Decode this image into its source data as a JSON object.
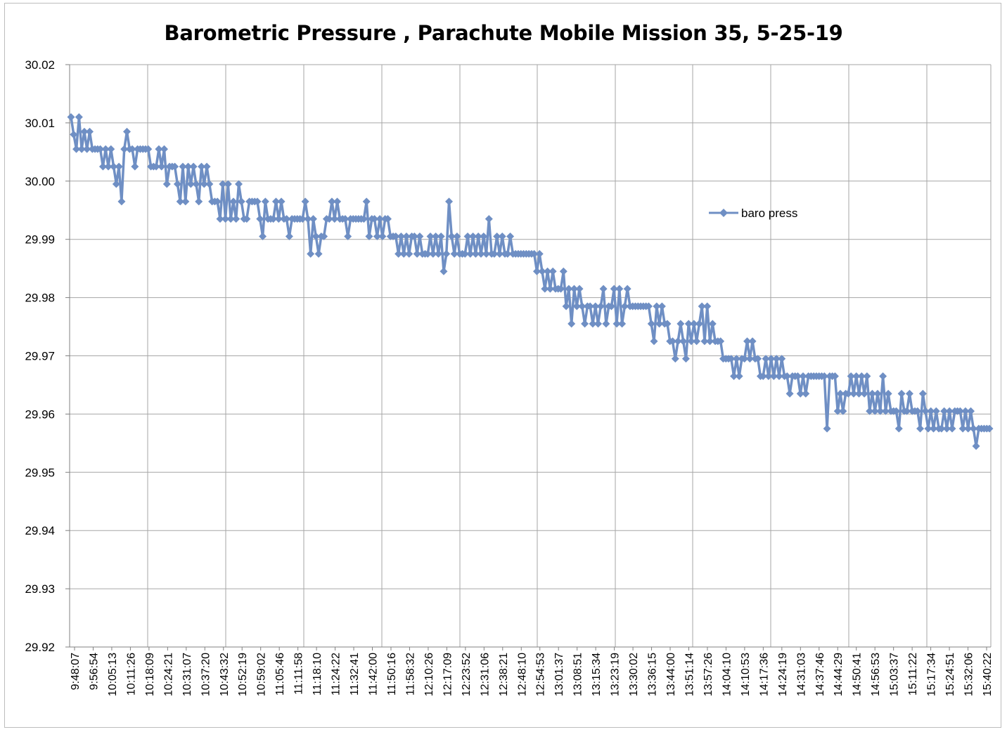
{
  "chart_data": {
    "type": "line",
    "title": "Barometric Pressure , Parachute Mobile Mission 35, 5-25-19",
    "xlabel": "",
    "ylabel": "",
    "ylim": [
      29.92,
      30.02
    ],
    "ytick_step": 0.01,
    "yticks": [
      "29.92",
      "29.93",
      "29.94",
      "29.95",
      "29.96",
      "29.97",
      "29.98",
      "29.99",
      "30.00",
      "30.01",
      "30.02"
    ],
    "x_tick_labels": [
      "9:48:07",
      "9:56:54",
      "10:05:13",
      "10:11:26",
      "10:18:09",
      "10:24:21",
      "10:31:07",
      "10:37:20",
      "10:43:32",
      "10:52:19",
      "10:59:02",
      "11:05:46",
      "11:11:58",
      "11:18:10",
      "11:24:22",
      "11:32:41",
      "11:42:00",
      "11:50:16",
      "11:58:32",
      "12:10:26",
      "12:17:09",
      "12:23:52",
      "12:31:06",
      "12:38:21",
      "12:48:10",
      "12:54:53",
      "13:01:37",
      "13:08:51",
      "13:15:34",
      "13:23:19",
      "13:30:02",
      "13:36:15",
      "13:44:00",
      "13:51:14",
      "13:57:26",
      "14:04:10",
      "14:10:53",
      "14:17:36",
      "14:24:19",
      "14:31:03",
      "14:37:46",
      "14:44:29",
      "14:50:41",
      "14:56:53",
      "15:03:37",
      "15:11:22",
      "15:17:34",
      "15:24:51",
      "15:32:06",
      "15:40:22"
    ],
    "legend": {
      "position": "right",
      "entries": [
        "baro press"
      ]
    },
    "grid": true,
    "series": [
      {
        "name": "baro press",
        "color": "#6f8fc4",
        "marker": "diamond",
        "points_per_tick": 4,
        "values": [
          30.011,
          30.008,
          30.0055,
          30.011,
          30.0055,
          30.0085,
          30.0055,
          30.0085,
          30.0055,
          30.0055,
          30.0055,
          30.0055,
          30.0025,
          30.0055,
          30.0025,
          30.0055,
          30.0025,
          29.9995,
          30.0025,
          29.9965,
          30.0055,
          30.0085,
          30.0055,
          30.0055,
          30.0025,
          30.0055,
          30.0055,
          30.0055,
          30.0055,
          30.0055,
          30.0025,
          30.0025,
          30.0025,
          30.0055,
          30.0025,
          30.0055,
          29.9995,
          30.0025,
          30.0025,
          30.0025,
          29.9995,
          29.9965,
          30.0025,
          29.9965,
          30.0025,
          29.9995,
          30.0025,
          29.9995,
          29.9965,
          30.0025,
          29.9995,
          30.0025,
          29.9995,
          29.9965,
          29.9965,
          29.9965,
          29.9935,
          29.9995,
          29.9935,
          29.9995,
          29.9935,
          29.9965,
          29.9935,
          29.9995,
          29.9965,
          29.9935,
          29.9935,
          29.9965,
          29.9965,
          29.9965,
          29.9965,
          29.9935,
          29.9905,
          29.9965,
          29.9935,
          29.9935,
          29.9935,
          29.9965,
          29.9935,
          29.9965,
          29.9935,
          29.9935,
          29.9905,
          29.9935,
          29.9935,
          29.9935,
          29.9935,
          29.9935,
          29.9965,
          29.9935,
          29.9875,
          29.9935,
          29.9905,
          29.9875,
          29.9905,
          29.9905,
          29.9935,
          29.9935,
          29.9965,
          29.9935,
          29.9965,
          29.9935,
          29.9935,
          29.9935,
          29.9905,
          29.9935,
          29.9935,
          29.9935,
          29.9935,
          29.9935,
          29.9935,
          29.9965,
          29.9905,
          29.9935,
          29.9935,
          29.9905,
          29.9935,
          29.9905,
          29.9935,
          29.9935,
          29.9905,
          29.9905,
          29.9905,
          29.9875,
          29.9905,
          29.9875,
          29.9905,
          29.9875,
          29.9905,
          29.9905,
          29.9875,
          29.9905,
          29.9875,
          29.9875,
          29.9875,
          29.9905,
          29.9875,
          29.9905,
          29.9875,
          29.9905,
          29.9845,
          29.9875,
          29.9965,
          29.9905,
          29.9875,
          29.9905,
          29.9875,
          29.9875,
          29.9875,
          29.9905,
          29.9875,
          29.9905,
          29.9875,
          29.9905,
          29.9875,
          29.9905,
          29.9875,
          29.9935,
          29.9875,
          29.9875,
          29.9905,
          29.9875,
          29.9905,
          29.9875,
          29.9875,
          29.9905,
          29.9875,
          29.9875,
          29.9875,
          29.9875,
          29.9875,
          29.9875,
          29.9875,
          29.9875,
          29.9875,
          29.9845,
          29.9875,
          29.9845,
          29.9815,
          29.9845,
          29.9815,
          29.9845,
          29.9815,
          29.9815,
          29.9815,
          29.9845,
          29.9785,
          29.9815,
          29.9755,
          29.9815,
          29.9785,
          29.9815,
          29.9785,
          29.9755,
          29.9785,
          29.9785,
          29.9755,
          29.9785,
          29.9755,
          29.9785,
          29.9815,
          29.9755,
          29.9785,
          29.9785,
          29.9815,
          29.9755,
          29.9815,
          29.9755,
          29.9785,
          29.9815,
          29.9785,
          29.9785,
          29.9785,
          29.9785,
          29.9785,
          29.9785,
          29.9785,
          29.9785,
          29.9755,
          29.9725,
          29.9785,
          29.9755,
          29.9785,
          29.9755,
          29.9755,
          29.9725,
          29.9725,
          29.9695,
          29.9725,
          29.9755,
          29.9725,
          29.9695,
          29.9755,
          29.9725,
          29.9755,
          29.9725,
          29.9755,
          29.9785,
          29.9725,
          29.9785,
          29.9725,
          29.9755,
          29.9725,
          29.9725,
          29.9725,
          29.9695,
          29.9695,
          29.9695,
          29.9695,
          29.9665,
          29.9695,
          29.9665,
          29.9695,
          29.9695,
          29.9725,
          29.9695,
          29.9725,
          29.9695,
          29.9695,
          29.9665,
          29.9665,
          29.9695,
          29.9665,
          29.9695,
          29.9665,
          29.9695,
          29.9665,
          29.9695,
          29.9665,
          29.9665,
          29.9635,
          29.9665,
          29.9665,
          29.9665,
          29.9635,
          29.9665,
          29.9635,
          29.9665,
          29.9665,
          29.9665,
          29.9665,
          29.9665,
          29.9665,
          29.9665,
          29.9575,
          29.9665,
          29.9665,
          29.9665,
          29.9605,
          29.9635,
          29.9605,
          29.9635,
          29.9635,
          29.9665,
          29.9635,
          29.9665,
          29.9635,
          29.9665,
          29.9635,
          29.9665,
          29.9605,
          29.9635,
          29.9605,
          29.9635,
          29.9605,
          29.9665,
          29.9605,
          29.9635,
          29.9605,
          29.9605,
          29.9605,
          29.9575,
          29.9635,
          29.9605,
          29.9605,
          29.9635,
          29.9605,
          29.9605,
          29.9605,
          29.9575,
          29.9635,
          29.9605,
          29.9575,
          29.9605,
          29.9575,
          29.9605,
          29.9575,
          29.9575,
          29.9605,
          29.9575,
          29.9605,
          29.9575,
          29.9605,
          29.9605,
          29.9605,
          29.9575,
          29.9605,
          29.9575,
          29.9605,
          29.9575,
          29.9545,
          29.9575,
          29.9575,
          29.9575,
          29.9575,
          29.9575
        ]
      }
    ]
  }
}
